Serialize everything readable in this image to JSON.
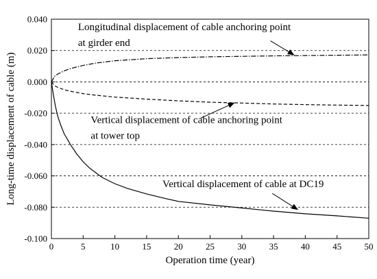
{
  "chart_data": {
    "type": "line",
    "title": "",
    "xlabel": "Operation time (year)",
    "ylabel": "Long-time displacement of cable (m)",
    "xlim": [
      0,
      50
    ],
    "ylim": [
      -0.1,
      0.04
    ],
    "xticks": [
      "0",
      "5",
      "10",
      "15",
      "20",
      "25",
      "30",
      "35",
      "40",
      "45",
      "50"
    ],
    "yticks": [
      "0.040",
      "0.020",
      "0.000",
      "-0.020",
      "-0.040",
      "-0.060",
      "-0.080",
      "-0.100"
    ],
    "grid": "horizontal dashed",
    "series": [
      {
        "name": "Longitudinal displacement of cable anchoring point at girder end",
        "style": "dash-dot",
        "x": [
          0,
          0.5,
          1,
          2,
          3,
          5,
          7,
          10,
          15,
          20,
          25,
          30,
          35,
          40,
          45,
          50
        ],
        "y": [
          0,
          0.0035,
          0.005,
          0.007,
          0.0085,
          0.0105,
          0.012,
          0.0135,
          0.0148,
          0.0155,
          0.016,
          0.0163,
          0.0166,
          0.0168,
          0.017,
          0.0172
        ]
      },
      {
        "name": "Vertical displacement of cable anchoring point at tower top",
        "style": "dashed",
        "x": [
          0,
          0.5,
          1,
          2,
          3,
          5,
          7,
          10,
          15,
          20,
          25,
          30,
          35,
          40,
          45,
          50
        ],
        "y": [
          0,
          -0.0025,
          -0.0035,
          -0.005,
          -0.006,
          -0.0075,
          -0.0085,
          -0.0097,
          -0.011,
          -0.0121,
          -0.013,
          -0.0135,
          -0.0141,
          -0.0145,
          -0.0148,
          -0.0151
        ]
      },
      {
        "name": "Vertical displacement of cable at DC19",
        "style": "solid",
        "x": [
          0,
          0.3,
          0.6,
          1,
          1.5,
          2,
          3,
          4,
          5,
          6,
          7,
          8,
          10,
          12,
          15,
          18,
          20,
          25,
          30,
          35,
          40,
          45,
          50
        ],
        "y": [
          0,
          -0.008,
          -0.015,
          -0.022,
          -0.028,
          -0.033,
          -0.04,
          -0.046,
          -0.051,
          -0.055,
          -0.058,
          -0.061,
          -0.065,
          -0.068,
          -0.0715,
          -0.0745,
          -0.0763,
          -0.0785,
          -0.0805,
          -0.0825,
          -0.0842,
          -0.0855,
          -0.087
        ]
      }
    ],
    "annotations": [
      {
        "lines": [
          "Longitudinal displacement of cable anchoring point",
          "at girder end"
        ],
        "text_x": 4.2,
        "text_y": 0.033,
        "arrow_from": [
          34.5,
          0.0262
        ],
        "arrow_to": [
          38.2,
          0.0172
        ]
      },
      {
        "lines": [
          "Vertical displacement of cable anchoring point",
          "at tower top"
        ],
        "text_x": 6.2,
        "text_y": -0.0262,
        "arrow_from": [
          23.5,
          -0.0232
        ],
        "arrow_to": [
          28.8,
          -0.0134
        ]
      },
      {
        "lines": [
          "Vertical displacement of cable at DC19"
        ],
        "text_x": 17.5,
        "text_y": -0.0672,
        "arrow_from": [
          34.8,
          -0.0712
        ],
        "arrow_to": [
          38.8,
          -0.0815
        ]
      }
    ]
  }
}
